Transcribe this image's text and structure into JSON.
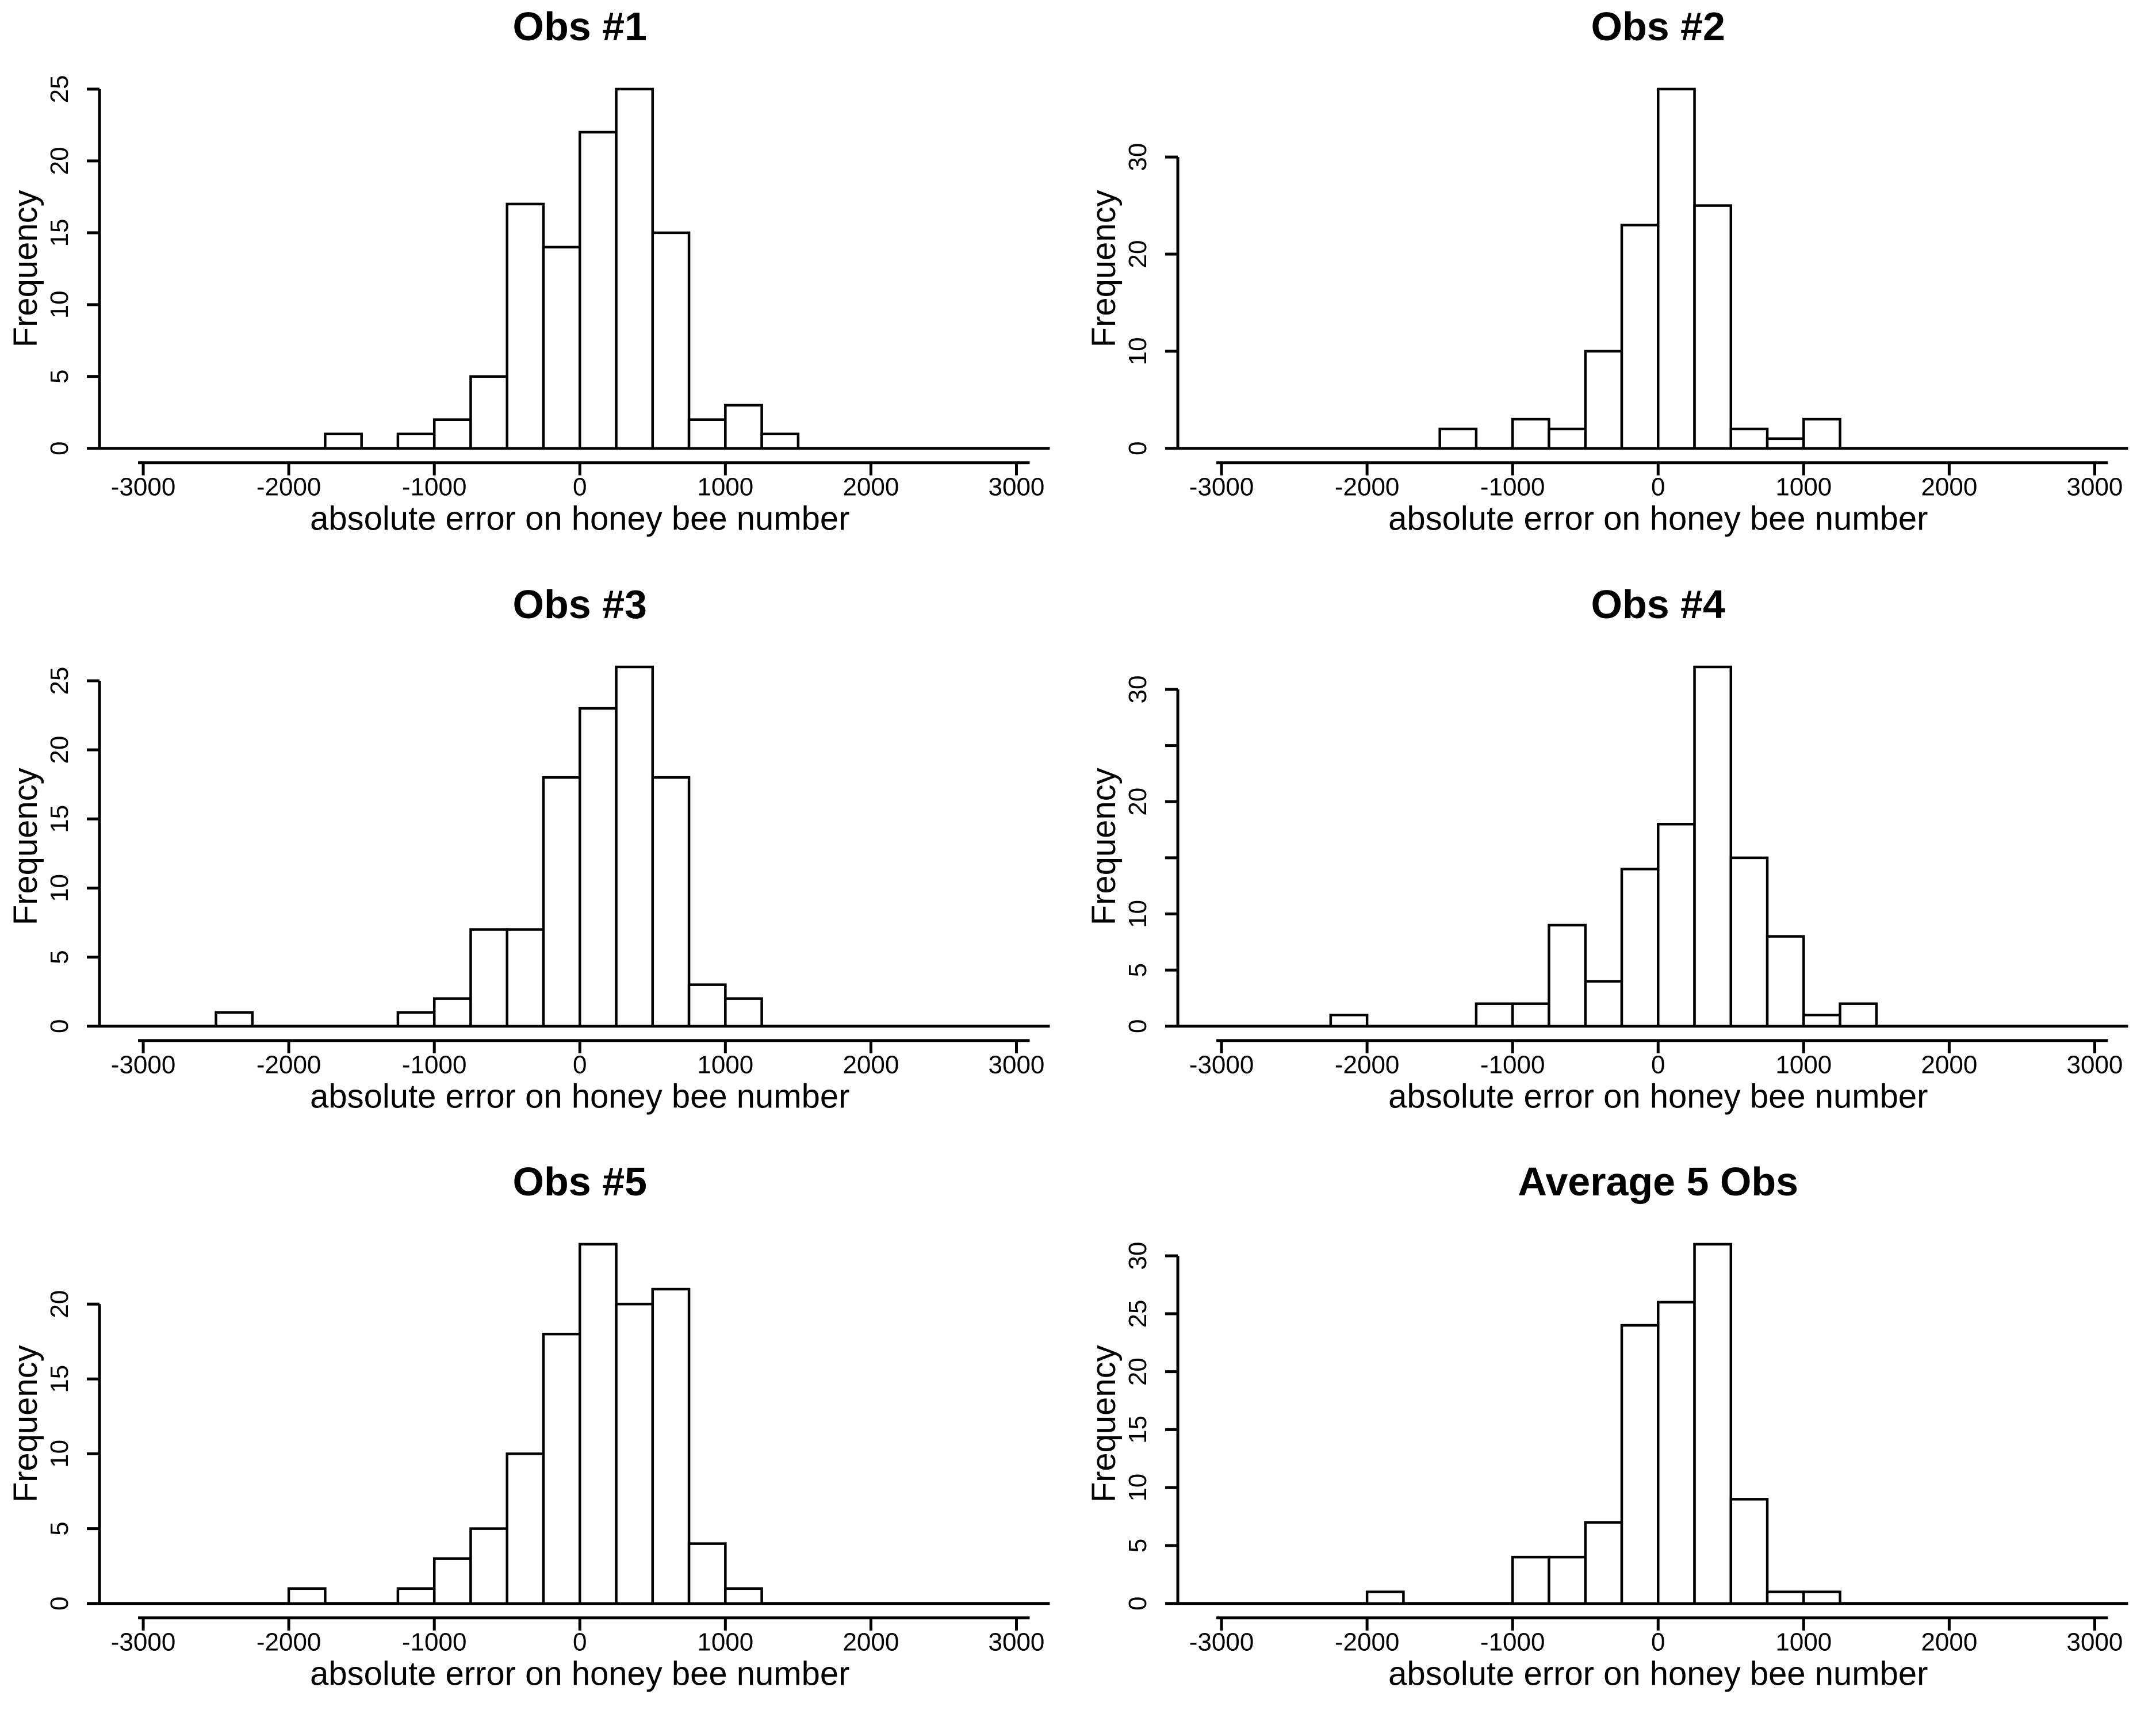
{
  "figure": {
    "background_color": "#ffffff",
    "ink_color": "#000000",
    "layout": "2 columns x 3 rows of histograms"
  },
  "chart_data": [
    {
      "type": "bar",
      "subtype": "histogram",
      "title": "Obs #1",
      "xlabel": "absolute error on honey bee number",
      "ylabel": "Frequency",
      "xlim": [
        -3000,
        3000
      ],
      "x_ticks": [
        -3000,
        -2000,
        -1000,
        0,
        1000,
        2000,
        3000
      ],
      "bin_width": 250,
      "bins": [
        [
          -1750,
          1
        ],
        [
          -1250,
          1
        ],
        [
          -1000,
          2
        ],
        [
          -750,
          5
        ],
        [
          -500,
          17
        ],
        [
          -250,
          14
        ],
        [
          0,
          22
        ],
        [
          250,
          25
        ],
        [
          500,
          15
        ],
        [
          750,
          2
        ],
        [
          1000,
          3
        ],
        [
          1250,
          1
        ]
      ],
      "total_count": 108,
      "peak": 25,
      "y_ticks": [
        0,
        5,
        10,
        15,
        20,
        25
      ],
      "y_tick_labels": [
        "0",
        "5",
        "10",
        "15",
        "20",
        "25"
      ],
      "grid": "off",
      "legend": "none"
    },
    {
      "type": "bar",
      "subtype": "histogram",
      "title": "Obs #2",
      "xlabel": "absolute error on honey bee number",
      "ylabel": "Frequency",
      "xlim": [
        -3000,
        3000
      ],
      "x_ticks": [
        -3000,
        -2000,
        -1000,
        0,
        1000,
        2000,
        3000
      ],
      "bin_width": 250,
      "bins": [
        [
          -1500,
          2
        ],
        [
          -1000,
          3
        ],
        [
          -750,
          2
        ],
        [
          -500,
          10
        ],
        [
          -250,
          23
        ],
        [
          0,
          37
        ],
        [
          250,
          25
        ],
        [
          500,
          2
        ],
        [
          750,
          1
        ],
        [
          1000,
          3
        ]
      ],
      "total_count": 108,
      "peak": 37,
      "y_ticks": [
        0,
        10,
        20,
        30
      ],
      "y_tick_labels": [
        "0",
        "10",
        "20",
        "30"
      ],
      "grid": "off",
      "legend": "none"
    },
    {
      "type": "bar",
      "subtype": "histogram",
      "title": "Obs #3",
      "xlabel": "absolute error on honey bee number",
      "ylabel": "Frequency",
      "xlim": [
        -3000,
        3000
      ],
      "x_ticks": [
        -3000,
        -2000,
        -1000,
        0,
        1000,
        2000,
        3000
      ],
      "bin_width": 250,
      "bins": [
        [
          -2500,
          1
        ],
        [
          -1250,
          1
        ],
        [
          -1000,
          2
        ],
        [
          -750,
          7
        ],
        [
          -500,
          7
        ],
        [
          -250,
          18
        ],
        [
          0,
          23
        ],
        [
          250,
          26
        ],
        [
          500,
          18
        ],
        [
          750,
          3
        ],
        [
          1000,
          2
        ]
      ],
      "total_count": 108,
      "peak": 26,
      "y_ticks": [
        0,
        5,
        10,
        15,
        20,
        25
      ],
      "y_tick_labels": [
        "0",
        "5",
        "10",
        "15",
        "20",
        "25"
      ],
      "grid": "off",
      "legend": "none"
    },
    {
      "type": "bar",
      "subtype": "histogram",
      "title": "Obs #4",
      "xlabel": "absolute error on honey bee number",
      "ylabel": "Frequency",
      "xlim": [
        -3000,
        3000
      ],
      "x_ticks": [
        -3000,
        -2000,
        -1000,
        0,
        1000,
        2000,
        3000
      ],
      "bin_width": 250,
      "bins": [
        [
          -2250,
          1
        ],
        [
          -1250,
          2
        ],
        [
          -1000,
          2
        ],
        [
          -750,
          9
        ],
        [
          -500,
          4
        ],
        [
          -250,
          14
        ],
        [
          0,
          18
        ],
        [
          250,
          32
        ],
        [
          500,
          15
        ],
        [
          750,
          8
        ],
        [
          1000,
          1
        ],
        [
          1250,
          2
        ]
      ],
      "total_count": 108,
      "peak": 32,
      "y_ticks": [
        0,
        5,
        10,
        15,
        20,
        25,
        30
      ],
      "y_tick_labels": [
        "0",
        "5",
        "10",
        "",
        "20",
        "",
        "30"
      ],
      "grid": "off",
      "legend": "none"
    },
    {
      "type": "bar",
      "subtype": "histogram",
      "title": "Obs #5",
      "xlabel": "absolute error on honey bee number",
      "ylabel": "Frequency",
      "xlim": [
        -3000,
        3000
      ],
      "x_ticks": [
        -3000,
        -2000,
        -1000,
        0,
        1000,
        2000,
        3000
      ],
      "bin_width": 250,
      "bins": [
        [
          -2000,
          1
        ],
        [
          -1250,
          1
        ],
        [
          -1000,
          3
        ],
        [
          -750,
          5
        ],
        [
          -500,
          10
        ],
        [
          -250,
          18
        ],
        [
          0,
          24
        ],
        [
          250,
          20
        ],
        [
          500,
          21
        ],
        [
          750,
          4
        ],
        [
          1000,
          1
        ]
      ],
      "total_count": 108,
      "peak": 24,
      "y_ticks": [
        0,
        5,
        10,
        15,
        20
      ],
      "y_tick_labels": [
        "0",
        "5",
        "10",
        "15",
        "20"
      ],
      "grid": "off",
      "legend": "none"
    },
    {
      "type": "bar",
      "subtype": "histogram",
      "title": "Average 5 Obs",
      "xlabel": "absolute error on honey bee number",
      "ylabel": "Frequency",
      "xlim": [
        -3000,
        3000
      ],
      "x_ticks": [
        -3000,
        -2000,
        -1000,
        0,
        1000,
        2000,
        3000
      ],
      "bin_width": 250,
      "bins": [
        [
          -2000,
          1
        ],
        [
          -1000,
          4
        ],
        [
          -750,
          4
        ],
        [
          -500,
          7
        ],
        [
          -250,
          24
        ],
        [
          0,
          26
        ],
        [
          250,
          31
        ],
        [
          500,
          9
        ],
        [
          750,
          1
        ],
        [
          1000,
          1
        ]
      ],
      "total_count": 108,
      "peak": 31,
      "y_ticks": [
        0,
        5,
        10,
        15,
        20,
        25,
        30
      ],
      "y_tick_labels": [
        "0",
        "5",
        "10",
        "15",
        "20",
        "25",
        "30"
      ],
      "grid": "off",
      "legend": "none"
    }
  ]
}
